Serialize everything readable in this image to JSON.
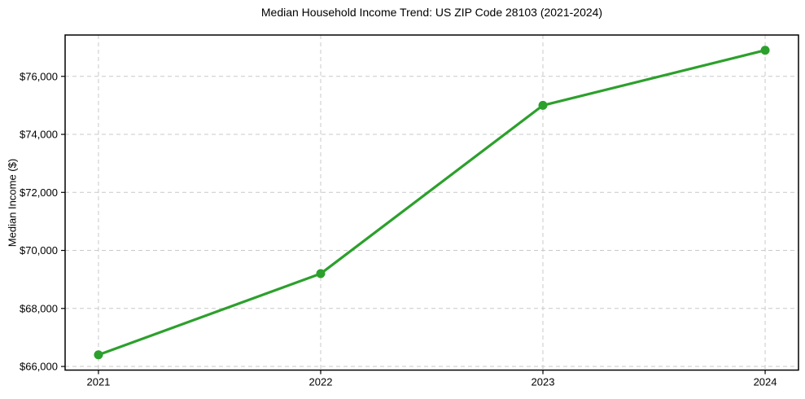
{
  "chart_data": {
    "type": "line",
    "title": "Median Household Income Trend: US ZIP Code 28103 (2021-2024)",
    "xlabel": "",
    "ylabel": "Median Income ($)",
    "categories": [
      "2021",
      "2022",
      "2023",
      "2024"
    ],
    "x": [
      2021,
      2022,
      2023,
      2024
    ],
    "series": [
      {
        "name": "Median Household Income",
        "values": [
          66400,
          69200,
          75000,
          76900
        ],
        "color": "#2ca02c",
        "marker": "circle"
      }
    ],
    "y_ticks": [
      66000,
      68000,
      70000,
      72000,
      74000,
      76000
    ],
    "y_tick_labels": [
      "$66,000",
      "$68,000",
      "$70,000",
      "$72,000",
      "$74,000",
      "$76,000"
    ],
    "xlim": [
      2020.85,
      2024.15
    ],
    "ylim": [
      65875,
      77425
    ],
    "grid": true,
    "grid_linestyle": "dashed",
    "legend_position": "none",
    "colors": {
      "line": "#2ca02c",
      "marker": "#2ca02c",
      "grid": "#c9c9c9",
      "spine": "#000000",
      "tick_text": "#000000",
      "background": "#ffffff"
    }
  }
}
